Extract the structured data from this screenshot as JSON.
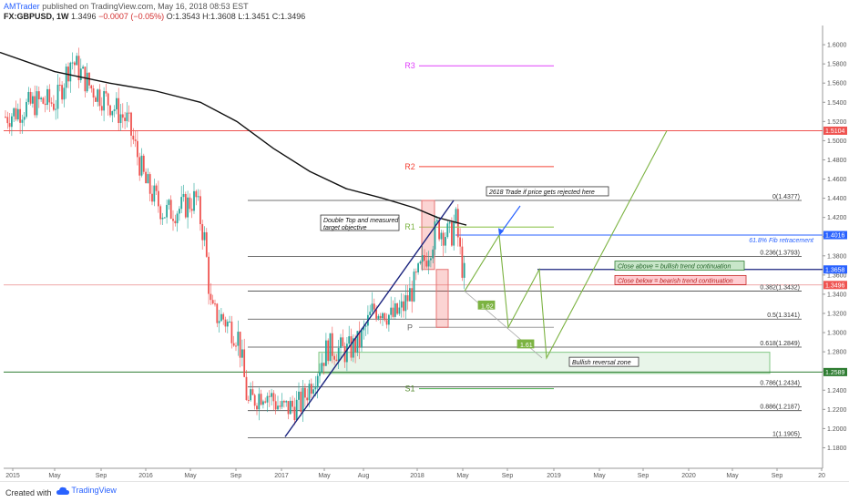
{
  "header": {
    "author": "AMTrader",
    "published": " published on TradingView.com, May 16, 2018 08:53 EST",
    "symbol": "FX:GBPUSD, 1W",
    "last": "1.3496",
    "change": "−0.0007 (−0.05%)",
    "ohlc": "O:1.3543 H:1.3608 L:1.3451 C:1.3496"
  },
  "footer": {
    "created_with": "Created with",
    "brand": "TradingView"
  },
  "colors": {
    "bull": "#26a69a",
    "bear": "#ef5350",
    "price_line": "#e57373",
    "ma": "#111111",
    "fib": "#444444",
    "pivot_r": "#f44336",
    "pivot_r3": "#e040fb",
    "pivot_p": "#9e9e9e",
    "pivot_s": "#4caf50",
    "trend": "#1a237e",
    "target_path": "#7cb342",
    "reversal_zone": "#e8f5e9",
    "zone_green_line": "#2e7d32",
    "fib_618_blue": "#2962ff"
  },
  "chart_data": {
    "type": "candlestick",
    "symbol": "FX:GBPUSD",
    "timeframe": "1W",
    "ylim": [
      1.17,
      1.62
    ],
    "x_ticks": [
      "2015",
      "May",
      "Sep",
      "2016",
      "May",
      "Sep",
      "2017",
      "May",
      "Aug",
      "2018",
      "May",
      "Sep",
      "2019",
      "May",
      "Sep",
      "2020",
      "May",
      "Sep",
      "20"
    ],
    "y_ticks": [
      "1.6000",
      "1.5800",
      "1.5600",
      "1.5400",
      "1.5200",
      "1.5000",
      "1.4800",
      "1.4600",
      "1.4400",
      "1.4200",
      "1.4000",
      "1.3800",
      "1.3600",
      "1.3400",
      "1.3200",
      "1.3000",
      "1.2800",
      "1.2600",
      "1.2400",
      "1.2200",
      "1.2000",
      "1.1800"
    ],
    "price_badges": [
      {
        "label": "1.5104",
        "value": 1.5104,
        "color": "#ef5350"
      },
      {
        "label": "1.4016",
        "value": 1.4016,
        "color": "#2962ff"
      },
      {
        "label": "1.3658",
        "value": 1.3658,
        "color": "#2962ff"
      },
      {
        "label": "1.3496",
        "value": 1.3496,
        "color": "#ef5350"
      },
      {
        "label": "1.2589",
        "value": 1.2589,
        "color": "#2e7d32"
      }
    ],
    "fib_levels": [
      {
        "label": "0(1.4377)",
        "value": 1.4377
      },
      {
        "label": "0.236(1.3793)",
        "value": 1.3793
      },
      {
        "label": "0.382(1.3432)",
        "value": 1.3432
      },
      {
        "label": "0.5(1.3141)",
        "value": 1.3141
      },
      {
        "label": "0.618(1.2849)",
        "value": 1.2849
      },
      {
        "label": "0.786(1.2434)",
        "value": 1.2434
      },
      {
        "label": "0.886(1.2187)",
        "value": 1.2187
      },
      {
        "label": "1(1.1905)",
        "value": 1.1905
      }
    ],
    "pivots": [
      {
        "label": "R3",
        "value": 1.578
      },
      {
        "label": "R2",
        "value": 1.473
      },
      {
        "label": "R1",
        "value": 1.41
      },
      {
        "label": "P",
        "value": 1.3055
      },
      {
        "label": "S1",
        "value": 1.2415
      }
    ],
    "annotations": {
      "double_top": [
        "Double Top and measured",
        "target objective"
      ],
      "trade_note": "2618 Trade if price gets rejected here",
      "fib_618": "61.8% Fib retracement",
      "close_above": "Close above = bullish trend continuation",
      "close_below": "Close below = bearish trend continuation",
      "reversal_zone": "Bullish reversal zone",
      "ext_162": "1.62",
      "ext_161": "1.61"
    },
    "seed": 7
  }
}
